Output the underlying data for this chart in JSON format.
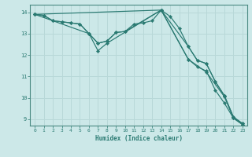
{
  "xlabel": "Humidex (Indice chaleur)",
  "background_color": "#cce8e8",
  "grid_color": "#b8d8d8",
  "line_color": "#2a7a72",
  "xlim": [
    -0.5,
    23.5
  ],
  "ylim": [
    8.7,
    14.35
  ],
  "xticks": [
    0,
    1,
    2,
    3,
    4,
    5,
    6,
    7,
    8,
    9,
    10,
    11,
    12,
    13,
    14,
    15,
    16,
    17,
    18,
    19,
    20,
    21,
    22,
    23
  ],
  "yticks": [
    9,
    10,
    11,
    12,
    13,
    14
  ],
  "lines": [
    {
      "x": [
        0,
        1,
        2,
        3,
        4,
        5,
        6,
        7,
        8,
        9,
        10,
        11,
        12,
        13,
        14,
        15,
        16,
        17,
        18,
        19,
        20,
        21,
        22,
        23
      ],
      "y": [
        13.9,
        13.85,
        13.6,
        13.55,
        13.5,
        13.45,
        13.0,
        12.55,
        12.65,
        13.05,
        13.1,
        13.45,
        13.5,
        13.6,
        14.1,
        13.8,
        13.25,
        12.4,
        11.75,
        11.6,
        10.75,
        10.1,
        9.1,
        8.8
      ]
    },
    {
      "x": [
        0,
        1,
        2,
        3,
        4,
        5,
        6,
        7,
        8,
        9,
        10,
        14,
        17,
        18,
        19,
        20,
        21,
        22,
        23
      ],
      "y": [
        13.9,
        13.85,
        13.6,
        13.55,
        13.5,
        13.45,
        13.0,
        12.55,
        12.65,
        13.05,
        13.1,
        14.1,
        12.4,
        11.75,
        11.6,
        10.75,
        10.1,
        9.1,
        8.8
      ]
    },
    {
      "x": [
        0,
        6,
        7,
        8,
        14,
        17,
        18,
        19,
        20,
        21,
        22,
        23
      ],
      "y": [
        13.9,
        13.0,
        12.2,
        12.55,
        14.1,
        11.8,
        11.45,
        11.25,
        10.35,
        9.75,
        9.05,
        8.75
      ]
    },
    {
      "x": [
        0,
        14,
        17,
        19,
        21,
        22,
        23
      ],
      "y": [
        13.9,
        14.1,
        11.8,
        11.2,
        10.05,
        9.05,
        8.75
      ]
    }
  ]
}
